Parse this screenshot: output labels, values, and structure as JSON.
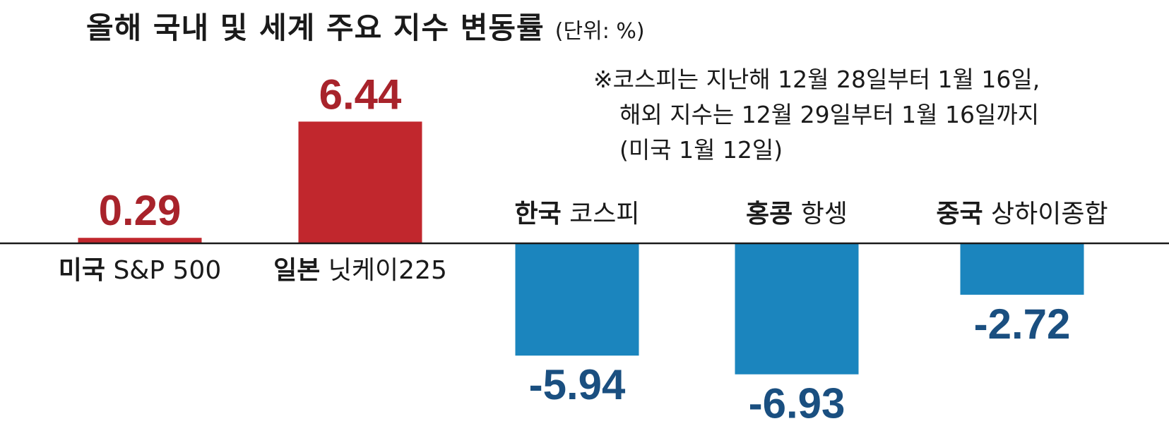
{
  "title": "올해 국내 및 세계 주요 지수 변동률",
  "unit": "(단위: %)",
  "note": [
    "※코스피는 지난해 12월 28일부터 1월 16일,",
    "해외 지수는 12월 29일부터 1월 16일까지",
    "(미국 1월 12일)"
  ],
  "colors": {
    "positive": "#c1272d",
    "positive_label": "#a8232b",
    "negative": "#1b85be",
    "negative_label": "#1a4f80",
    "axis": "#1a1a1a"
  },
  "chart_data": {
    "type": "bar",
    "title": "올해 국내 및 세계 주요 지수 변동률",
    "unit": "%",
    "categories": [
      {
        "country": "미국",
        "index": "S&P 500"
      },
      {
        "country": "일본",
        "index": "닛케이225"
      },
      {
        "country": "한국",
        "index": "코스피"
      },
      {
        "country": "홍콩",
        "index": "항셍"
      },
      {
        "country": "중국",
        "index": "상하이종합"
      }
    ],
    "values": [
      0.29,
      6.44,
      -5.94,
      -6.93,
      -2.72
    ],
    "value_labels": [
      "0.29",
      "6.44",
      "-5.94",
      "-6.93",
      "-2.72"
    ],
    "grid": false,
    "legend": "none"
  }
}
